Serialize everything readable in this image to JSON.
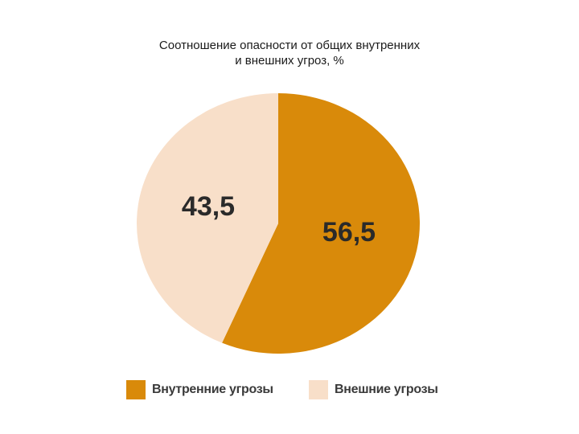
{
  "chart_data": {
    "type": "pie",
    "title_line1": "Соотношение опасности от  общих внутренних",
    "title_line2": "и внешних угроз, %",
    "slices": [
      {
        "name": "Внутренние угрозы",
        "value": 56.5,
        "label": "56,5",
        "color": "#D98A0A"
      },
      {
        "name": "Внешние угрозы",
        "value": 43.5,
        "label": "43,5",
        "color": "#F8DFC9"
      }
    ],
    "legend_position": "bottom"
  }
}
